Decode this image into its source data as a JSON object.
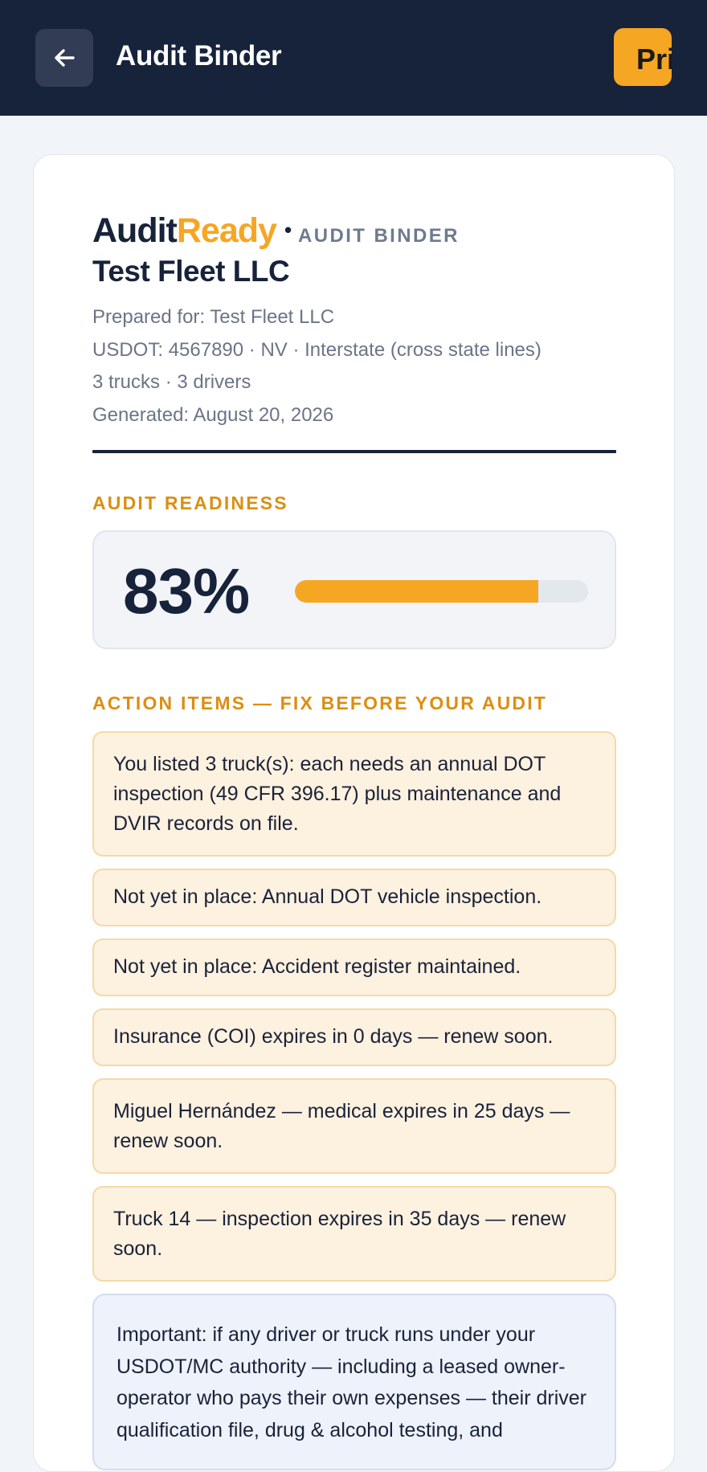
{
  "topbar": {
    "title": "Audit Binder",
    "back_icon": "arrow-left-icon",
    "print_label": "Print"
  },
  "binder": {
    "brand_audit": "Audit",
    "brand_ready": "Ready",
    "brand_sep": "•",
    "brand_subtitle": "AUDIT BINDER",
    "company": "Test Fleet LLC",
    "prepared_for": "Prepared for: Test Fleet LLC",
    "usdot": "USDOT: 4567890 · NV · Interstate (cross state lines)",
    "fleet": "3 trucks · 3 drivers",
    "generated": "Generated: August 20, 2026"
  },
  "readiness": {
    "label": "AUDIT READINESS",
    "percent_text": "83%",
    "percent": 83
  },
  "action_items": {
    "label": "ACTION ITEMS — FIX BEFORE YOUR AUDIT",
    "items": [
      "You listed 3 truck(s): each needs an annual DOT inspection (49 CFR 396.17) plus maintenance and DVIR records on file.",
      "Not yet in place: Annual DOT vehicle inspection.",
      "Not yet in place: Accident register maintained.",
      "Insurance (COI) expires in 0 days — renew soon.",
      "Miguel Hernández — medical expires in 25 days — renew soon.",
      "Truck 14 — inspection expires in 35 days — renew soon."
    ]
  },
  "note": {
    "text": "Important: if any driver or truck runs under your USDOT/MC authority — including a leased owner-operator who pays their own expenses — their driver qualification file, drug & alcohol testing, and"
  },
  "colors": {
    "header_bg": "#17223b",
    "accent": "#f5a623",
    "section_label": "#dc8e12",
    "action_bg": "#fdf1e0",
    "note_bg": "#edf2fb"
  }
}
